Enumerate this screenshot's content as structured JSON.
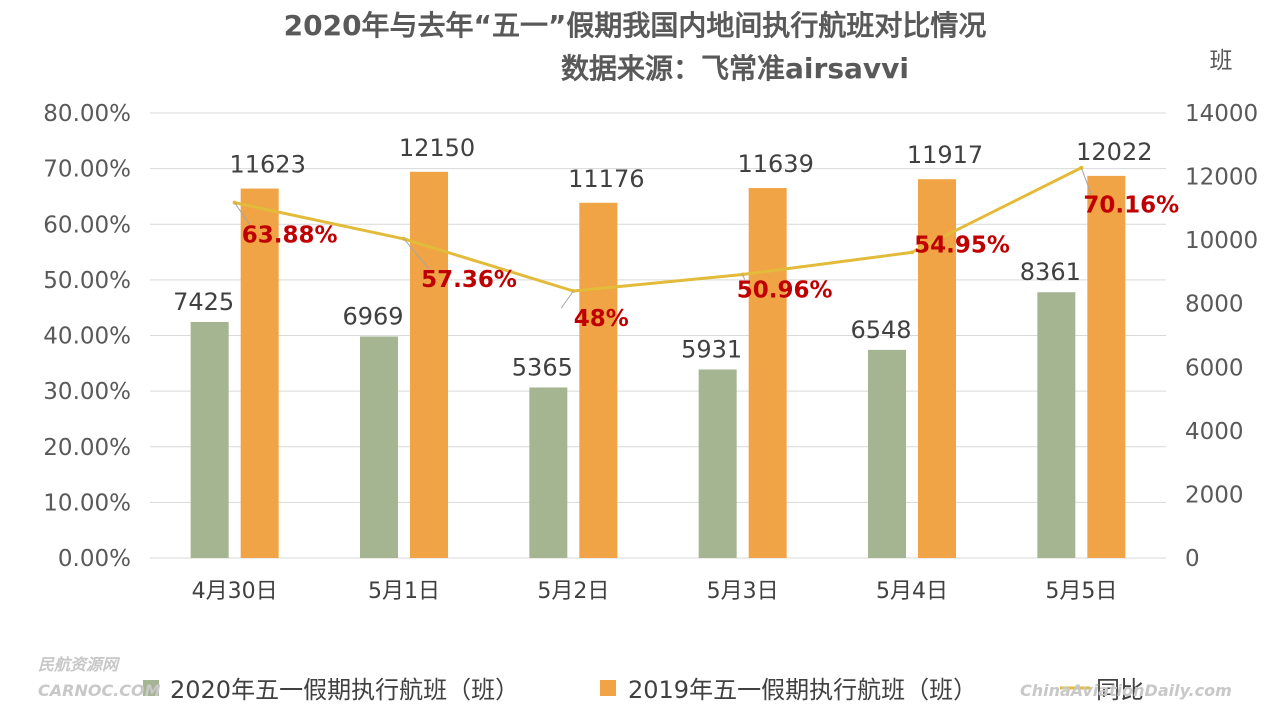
{
  "chart_data": {
    "type": "bar",
    "title": "2020年与去年“五一”假期我国内地间执行航班对比情况",
    "subtitle": "数据来源：飞常准airsavvi",
    "categories": [
      "4月30日",
      "5月1日",
      "5月2日",
      "5月3日",
      "5月4日",
      "5月5日"
    ],
    "series": [
      {
        "name": "2020年五一假期执行航班（班）",
        "axis": "right",
        "color": "#a5b592",
        "values": [
          7425,
          6969,
          5365,
          5931,
          6548,
          8361
        ]
      },
      {
        "name": "2019年五一假期执行航班（班）",
        "axis": "right",
        "color": "#f0a445",
        "values": [
          11623,
          12150,
          11176,
          11639,
          11917,
          12022
        ]
      },
      {
        "name": "同比",
        "type": "line",
        "axis": "left",
        "color": "#e2bb3a",
        "values": [
          63.88,
          57.36,
          48,
          50.96,
          54.95,
          70.16
        ],
        "labels": [
          "63.88%",
          "57.36%",
          "48%",
          "50.96%",
          "54.95%",
          "70.16%"
        ]
      }
    ],
    "y_left": {
      "min": 0,
      "max": 80,
      "step": 10,
      "ticks": [
        "0.00%",
        "10.00%",
        "20.00%",
        "30.00%",
        "40.00%",
        "50.00%",
        "60.00%",
        "70.00%",
        "80.00%"
      ]
    },
    "y_right": {
      "min": 0,
      "max": 14000,
      "step": 2000,
      "label": "班",
      "ticks": [
        "0",
        "2000",
        "4000",
        "6000",
        "8000",
        "10000",
        "12000",
        "14000"
      ]
    },
    "grid": true,
    "legend": "bottom"
  },
  "watermarks": [
    "民航资源网",
    "CARNOC.COM",
    "ChinaAviationDaily.com"
  ]
}
